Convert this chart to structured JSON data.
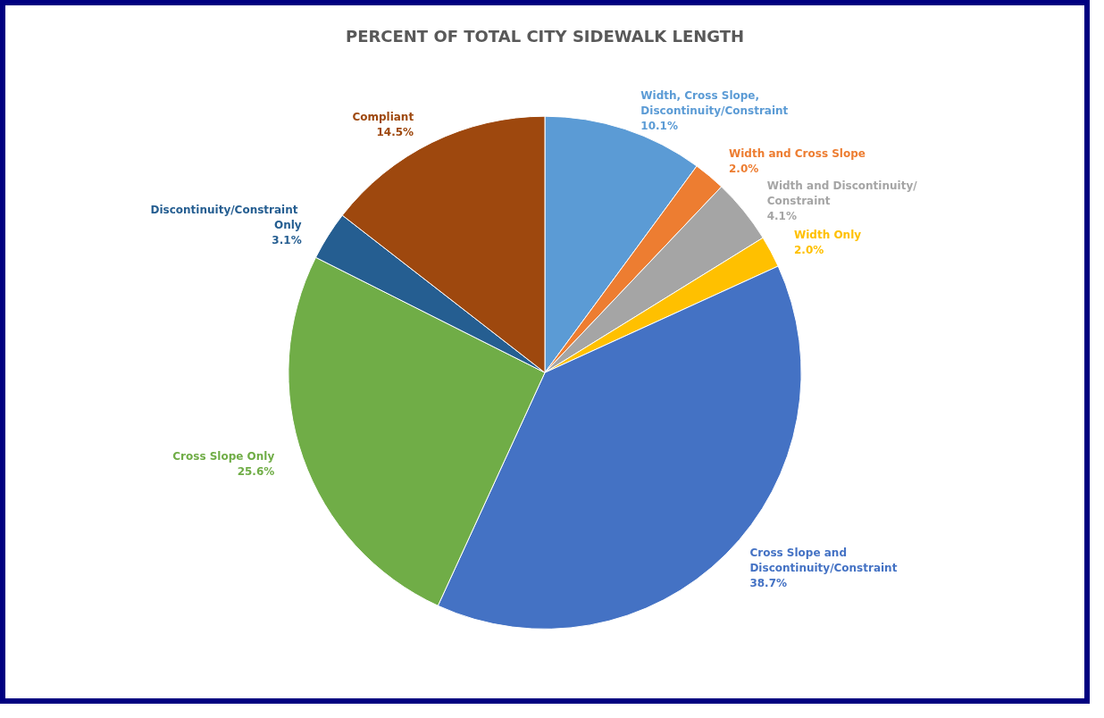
{
  "chart_data": {
    "type": "pie",
    "title": "PERCENT OF TOTAL CITY SIDEWALK LENGTH",
    "categories": [
      "Width, Cross Slope, Discontinuity/Constraint",
      "Width and Cross Slope",
      "Width and Discontinuity/Constraint",
      "Width Only",
      "Cross Slope and Discontinuity/Constraint",
      "Cross Slope Only",
      "Discontinuity/Constraint Only",
      "Compliant"
    ],
    "values": [
      10.1,
      2.0,
      4.1,
      2.0,
      38.7,
      25.6,
      3.1,
      14.5
    ],
    "value_labels": [
      "10.1%",
      "2.0%",
      "4.1%",
      "2.0%",
      "38.7%",
      "25.6%",
      "3.1%",
      "14.5%"
    ],
    "colors": [
      "#5b9bd5",
      "#ed7d31",
      "#a5a5a5",
      "#ffc000",
      "#4472c4",
      "#70ad47",
      "#255e91",
      "#9e480e"
    ],
    "legend": false
  }
}
